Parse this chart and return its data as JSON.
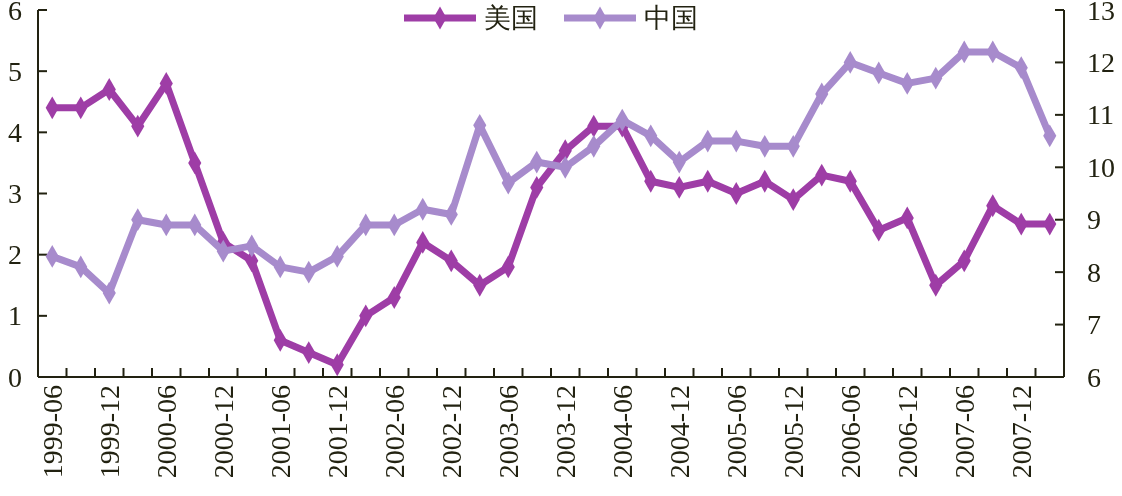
{
  "chart_data": {
    "type": "line",
    "categories": [
      "1999-06",
      null,
      "1999-12",
      null,
      "2000-06",
      null,
      "2000-12",
      null,
      "2001-06",
      null,
      "2001-12",
      null,
      "2002-06",
      null,
      "2002-12",
      null,
      "2003-06",
      null,
      "2003-12",
      null,
      "2004-06",
      null,
      "2004-12",
      null,
      "2005-06",
      null,
      "2005-12",
      null,
      "2006-06",
      null,
      "2006-12",
      null,
      "2007-06",
      null,
      "2007-12",
      null
    ],
    "ylim": [
      0,
      6
    ],
    "yticks": [
      0,
      1,
      2,
      3,
      4,
      5,
      6
    ],
    "y2lim": [
      6,
      13
    ],
    "y2ticks": [
      6,
      7,
      8,
      9,
      10,
      11,
      12,
      13
    ],
    "legend": "top",
    "marker": "diamond",
    "line_style": "solid",
    "series": [
      {
        "name": "美国",
        "color": "#9e3da6",
        "values": [
          4.4,
          4.4,
          4.7,
          4.1,
          4.8,
          3.5,
          2.2,
          1.9,
          0.6,
          0.4,
          0.2,
          1.0,
          1.3,
          2.2,
          1.9,
          1.5,
          1.8,
          3.1,
          3.7,
          4.1,
          4.1,
          3.2,
          3.1,
          3.2,
          3.0,
          3.2,
          2.9,
          3.3,
          3.2,
          2.4,
          2.6,
          1.5,
          1.9,
          2.8,
          2.5,
          2.5
        ]
      },
      {
        "name": "中国",
        "color": "#a78bcc",
        "axis": "y2",
        "values": [
          8.3,
          8.1,
          7.6,
          9.0,
          8.9,
          8.9,
          8.4,
          8.5,
          8.1,
          8.0,
          8.3,
          8.9,
          8.9,
          9.2,
          9.1,
          10.8,
          9.7,
          10.1,
          10.0,
          10.4,
          10.9,
          10.6,
          10.1,
          10.5,
          10.5,
          10.4,
          10.4,
          11.4,
          12.0,
          11.8,
          11.6,
          11.7,
          12.2,
          12.2,
          11.9,
          10.6
        ]
      }
    ]
  }
}
